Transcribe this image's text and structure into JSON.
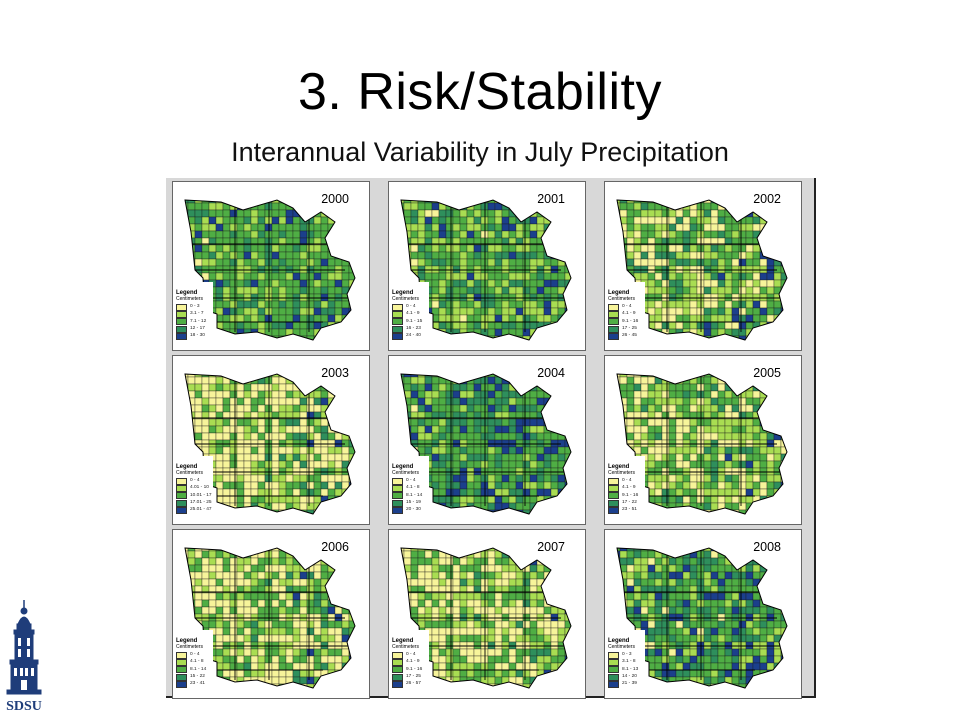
{
  "slide": {
    "title": "3. Risk/Stability",
    "subtitle": "Interannual Variability in July Precipitation"
  },
  "legend_common": {
    "title": "Legend",
    "unit": "Centimeters"
  },
  "colors": {
    "c1": "#f7f49a",
    "c2": "#a9dd52",
    "c3": "#4fae44",
    "c4": "#2e8f5c",
    "c5": "#1b3f8c"
  },
  "maps": [
    {
      "year": "2000",
      "classes": [
        "0 - 3",
        "3.1 - 7",
        "7.1 - 12",
        "12 - 17",
        "18 - 30"
      ],
      "mix": [
        0.03,
        0.22,
        0.5,
        0.2,
        0.05
      ]
    },
    {
      "year": "2001",
      "classes": [
        "0 - 4",
        "4.1 - 9",
        "9.1 - 15",
        "16 - 23",
        "24 - 40"
      ],
      "mix": [
        0.04,
        0.3,
        0.42,
        0.19,
        0.05
      ]
    },
    {
      "year": "2002",
      "classes": [
        "0 - 4",
        "4.1 - 9",
        "9.1 - 16",
        "17 - 25",
        "26 - 45"
      ],
      "mix": [
        0.2,
        0.3,
        0.3,
        0.15,
        0.05
      ]
    },
    {
      "year": "2003",
      "classes": [
        "0 - 4",
        "4.01 - 10",
        "10.01 - 17",
        "17.01 - 25",
        "25.01 - 47"
      ],
      "mix": [
        0.38,
        0.24,
        0.22,
        0.12,
        0.04
      ]
    },
    {
      "year": "2004",
      "classes": [
        "0 - 4",
        "4.1 - 8",
        "8.1 - 14",
        "15 - 19",
        "20 - 30"
      ],
      "mix": [
        0.02,
        0.16,
        0.4,
        0.27,
        0.15
      ]
    },
    {
      "year": "2005",
      "classes": [
        "0 - 4",
        "4.1 - 9",
        "9.1 - 16",
        "17 - 22",
        "23 - 51"
      ],
      "mix": [
        0.24,
        0.3,
        0.3,
        0.12,
        0.04
      ]
    },
    {
      "year": "2006",
      "classes": [
        "0 - 4",
        "4.1 - 8",
        "8.1 - 14",
        "15 - 22",
        "23 - 41"
      ],
      "mix": [
        0.3,
        0.3,
        0.28,
        0.09,
        0.03
      ]
    },
    {
      "year": "2007",
      "classes": [
        "0 - 4",
        "4.1 - 9",
        "9.1 - 16",
        "17 - 25",
        "26 - 57"
      ],
      "mix": [
        0.32,
        0.26,
        0.28,
        0.1,
        0.04
      ]
    },
    {
      "year": "2008",
      "classes": [
        "0 - 3",
        "3.1 - 8",
        "8.1 - 13",
        "14 - 20",
        "21 - 39"
      ],
      "mix": [
        0.06,
        0.22,
        0.36,
        0.24,
        0.12
      ]
    }
  ],
  "logo": {
    "text": "SDSU"
  }
}
